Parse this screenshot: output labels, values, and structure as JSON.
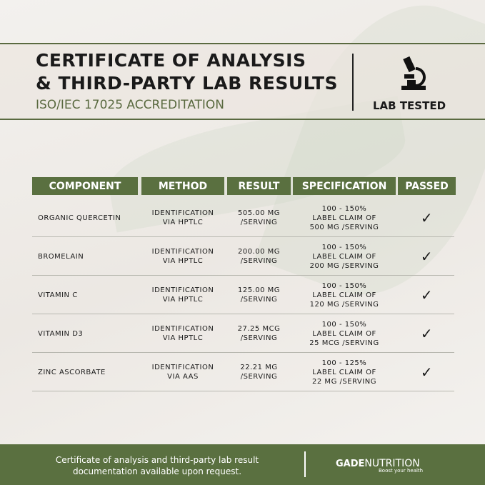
{
  "header": {
    "title_line1": "CERTIFICATE OF ANALYSIS",
    "title_line2": "& THIRD-PARTY LAB RESULTS",
    "subtitle": "ISO/IEC 17025 ACCREDITATION",
    "badge": "LAB TESTED"
  },
  "table": {
    "columns": [
      "COMPONENT",
      "METHOD",
      "RESULT",
      "SPECIFICATION",
      "PASSED"
    ],
    "rows": [
      {
        "component": "ORGANIC QUERCETIN",
        "method": [
          "IDENTIFICATION",
          "VIA HPTLC"
        ],
        "result": [
          "505.00 MG",
          "/SERVING"
        ],
        "spec": [
          "100 - 150%",
          "LABEL CLAIM OF",
          "500 MG /SERVING"
        ],
        "passed": "✓"
      },
      {
        "component": "BROMELAIN",
        "method": [
          "IDENTIFICATION",
          "VIA HPTLC"
        ],
        "result": [
          "200.00 MG",
          "/SERVING"
        ],
        "spec": [
          "100 - 150%",
          "LABEL CLAIM OF",
          "200 MG /SERVING"
        ],
        "passed": "✓"
      },
      {
        "component": "VITAMIN C",
        "method": [
          "IDENTIFICATION",
          "VIA HPTLC"
        ],
        "result": [
          "125.00 MG",
          "/SERVING"
        ],
        "spec": [
          "100 - 150%",
          "LABEL CLAIM OF",
          "120 MG /SERVING"
        ],
        "passed": "✓"
      },
      {
        "component": "VITAMIN D3",
        "method": [
          "IDENTIFICATION",
          "VIA HPTLC"
        ],
        "result": [
          "27.25 MCG",
          "/SERVING"
        ],
        "spec": [
          "100 - 150%",
          "LABEL CLAIM OF",
          "25 MCG /SERVING"
        ],
        "passed": "✓"
      },
      {
        "component": "ZINC ASCORBATE",
        "method": [
          "IDENTIFICATION",
          "VIA AAS"
        ],
        "result": [
          "22.21 MG",
          "/SERVING"
        ],
        "spec": [
          "100 - 125%",
          "LABEL CLAIM OF",
          "22 MG /SERVING"
        ],
        "passed": "✓"
      }
    ]
  },
  "footer": {
    "line1": "Certificate of analysis and third-party lab result",
    "line2": "documentation available upon request.",
    "brand_bold": "GADE",
    "brand_rest": "NUTRITION",
    "tagline": "Boost your health"
  },
  "colors": {
    "accent": "#5a7040",
    "text": "#1a1a1a"
  }
}
